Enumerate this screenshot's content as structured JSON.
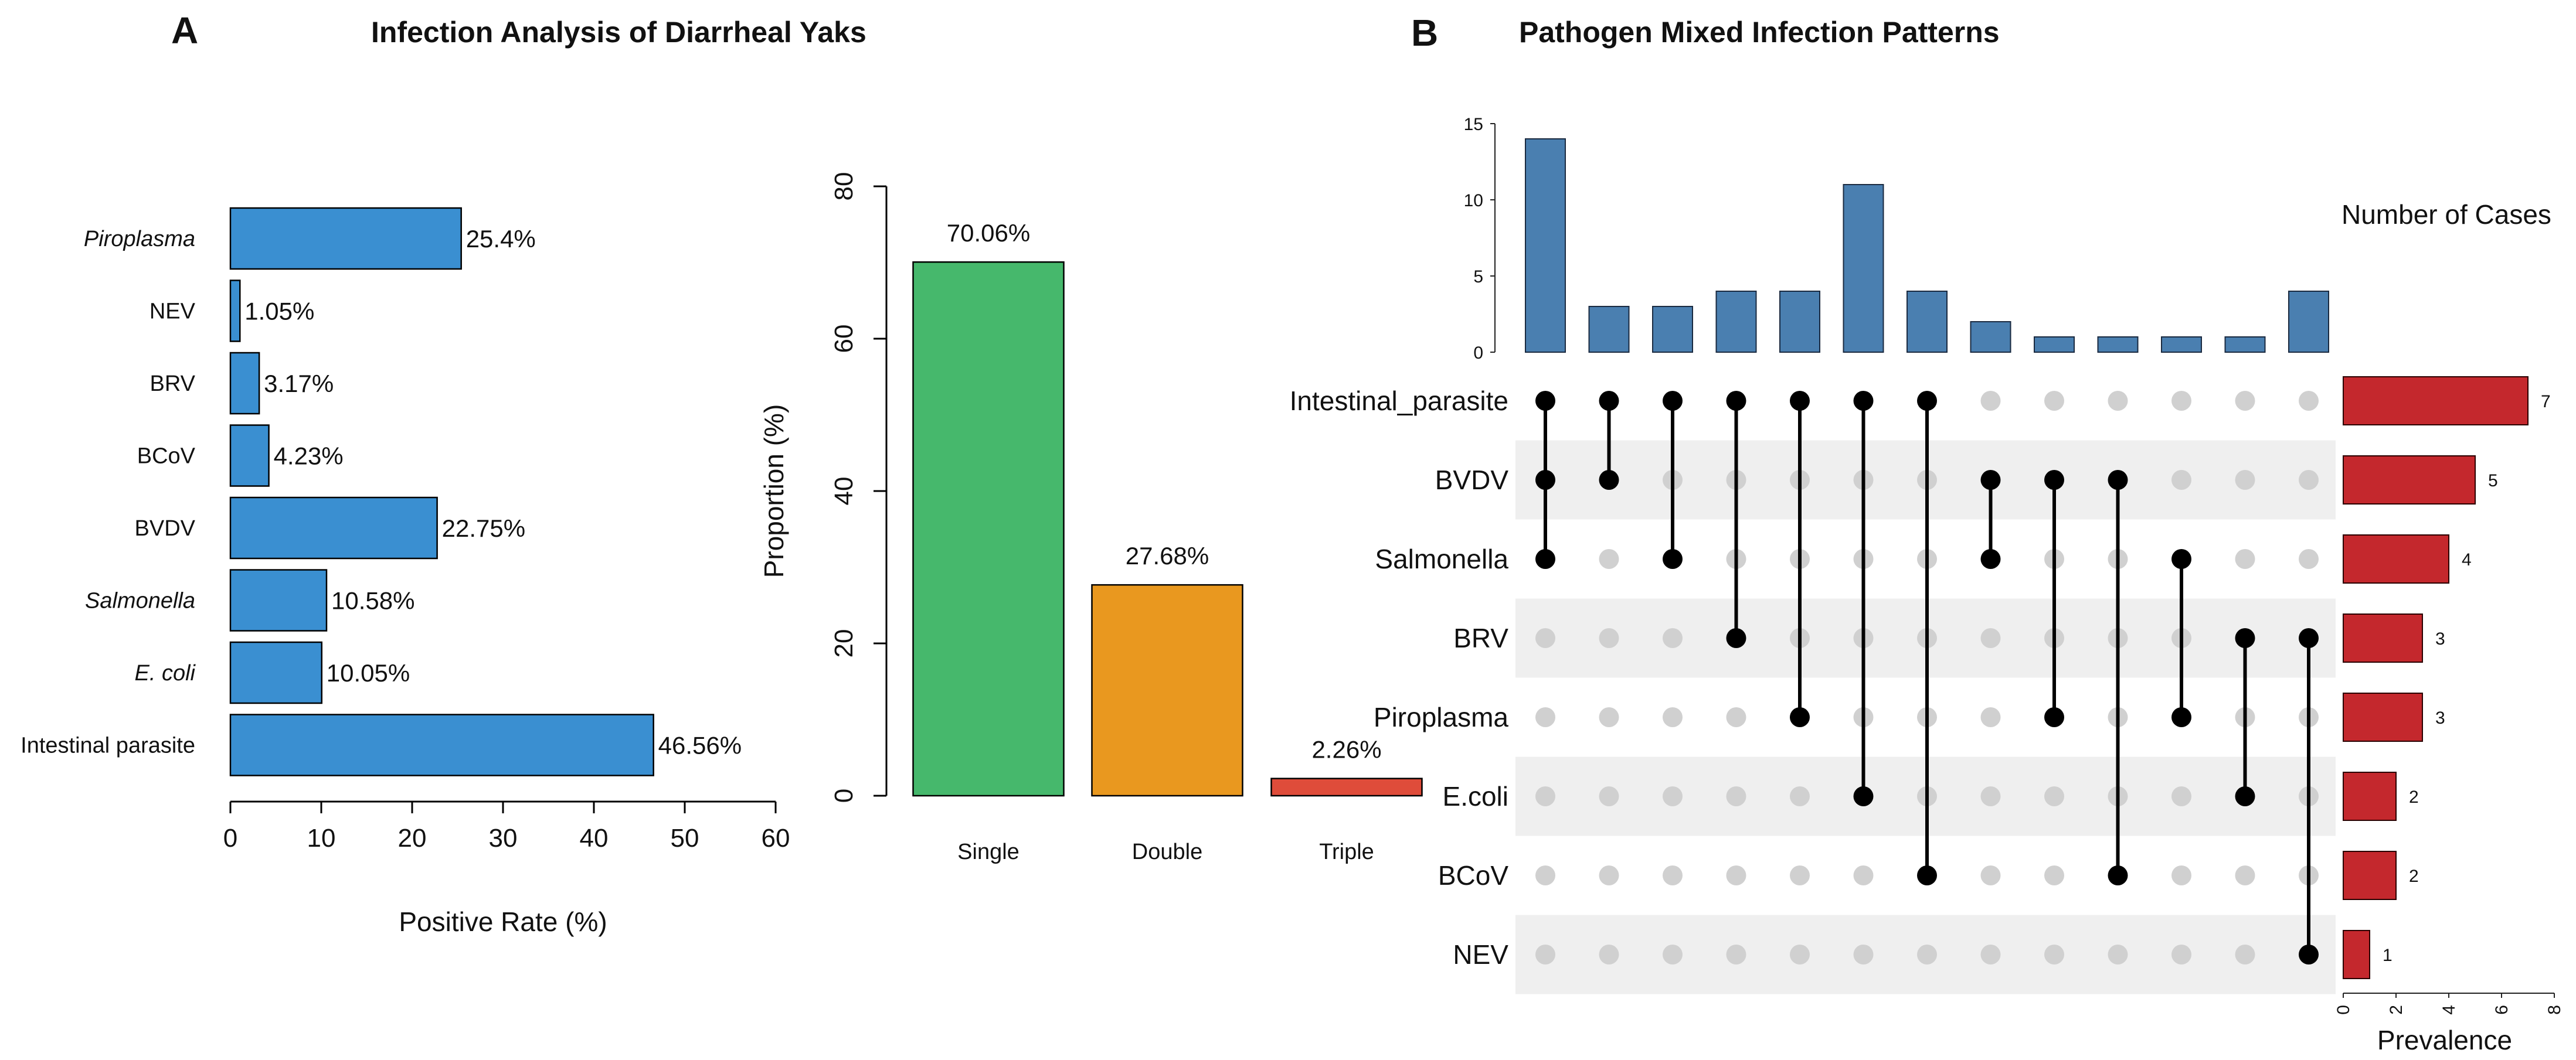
{
  "panel_a": {
    "letter": "A",
    "title": "Infection Analysis of Diarrheal Yaks"
  },
  "panel_b": {
    "letter": "B",
    "title": "Pathogen Mixed Infection Patterns"
  },
  "chart_data": [
    {
      "id": "positive-rate",
      "type": "bar",
      "orientation": "horizontal",
      "categories": [
        "Piroplasma",
        "NEV",
        "BRV",
        "BCoV",
        "BVDV",
        "Salmonella",
        "E. coli",
        "Intestinal parasite"
      ],
      "italic": [
        true,
        false,
        false,
        false,
        false,
        true,
        true,
        false
      ],
      "values": [
        25.4,
        1.05,
        3.17,
        4.23,
        22.75,
        10.58,
        10.05,
        46.56
      ],
      "labels": [
        "25.4%",
        "1.05%",
        "3.17%",
        "4.23%",
        "22.75%",
        "10.58%",
        "10.05%",
        "46.56%"
      ],
      "xlabel": "Positive Rate (%)",
      "xlim": [
        0,
        60
      ],
      "xticks": [
        0,
        10,
        20,
        30,
        40,
        50,
        60
      ],
      "color": "#3a8fd1"
    },
    {
      "id": "infection-type",
      "type": "bar",
      "categories": [
        "Single",
        "Double",
        "Triple"
      ],
      "values": [
        70.06,
        27.68,
        2.26
      ],
      "labels": [
        "70.06%",
        "27.68%",
        "2.26%"
      ],
      "colors": [
        "#46b86c",
        "#e9981f",
        "#df4c3a"
      ],
      "ylabel": "Proportion (%)",
      "ylim": [
        0,
        80
      ],
      "yticks": [
        0,
        20,
        40,
        60,
        80
      ]
    },
    {
      "id": "mixed-infection-upset",
      "type": "upset",
      "sets": [
        "Intestinal_parasite",
        "BVDV",
        "Salmonella",
        "BRV",
        "Piroplasma",
        "E.coli",
        "BCoV",
        "NEV"
      ],
      "set_sizes": [
        7,
        5,
        4,
        3,
        3,
        2,
        2,
        1
      ],
      "set_size_title": "Prevalence",
      "set_size_ticks": [
        0,
        2,
        4,
        6,
        8
      ],
      "set_size_xlim": [
        0,
        8
      ],
      "intersection_title": "Number of Cases",
      "intersection_yticks": [
        0,
        5,
        10,
        15
      ],
      "intersection_ylim": [
        0,
        15
      ],
      "intersections": [
        {
          "sets": [
            "Intestinal_parasite",
            "BVDV",
            "Salmonella"
          ],
          "count": 14
        },
        {
          "sets": [
            "Intestinal_parasite",
            "BVDV"
          ],
          "count": 3
        },
        {
          "sets": [
            "Intestinal_parasite",
            "Salmonella"
          ],
          "count": 3
        },
        {
          "sets": [
            "Intestinal_parasite",
            "BRV"
          ],
          "count": 4
        },
        {
          "sets": [
            "Intestinal_parasite",
            "Piroplasma"
          ],
          "count": 4
        },
        {
          "sets": [
            "Intestinal_parasite",
            "E.coli"
          ],
          "count": 11
        },
        {
          "sets": [
            "Intestinal_parasite",
            "BCoV"
          ],
          "count": 4
        },
        {
          "sets": [
            "BVDV",
            "Salmonella"
          ],
          "count": 2
        },
        {
          "sets": [
            "BVDV",
            "Piroplasma"
          ],
          "count": 1
        },
        {
          "sets": [
            "BVDV",
            "BCoV"
          ],
          "count": 1
        },
        {
          "sets": [
            "Salmonella",
            "Piroplasma"
          ],
          "count": 1
        },
        {
          "sets": [
            "BRV",
            "E.coli"
          ],
          "count": 1
        },
        {
          "sets": [
            "BRV",
            "NEV"
          ],
          "count": 4
        }
      ],
      "bar_color": "#4a7fb0",
      "set_bar_color": "#c4282d",
      "dot_active_color": "#000000",
      "dot_inactive_color": "#d0d0d0",
      "stripe_color": "#efefef"
    }
  ]
}
